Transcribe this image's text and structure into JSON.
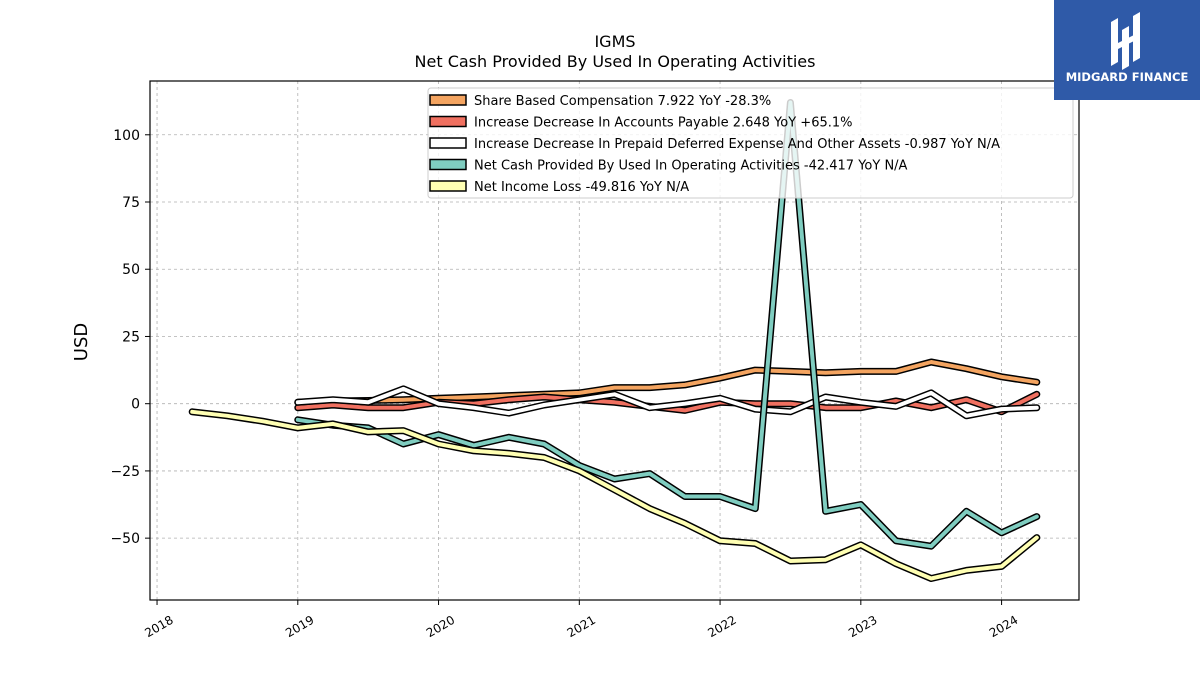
{
  "chart_data": {
    "type": "line",
    "title": "IGMS",
    "subtitle": "Net Cash Provided By Used In Operating Activities",
    "ylabel": "USD",
    "xlabel": "",
    "xlim": [
      2017.95,
      2024.55
    ],
    "ylim": [
      -73,
      120
    ],
    "x_ticks": [
      {
        "value": 2018,
        "label": "2018"
      },
      {
        "value": 2019,
        "label": "2019"
      },
      {
        "value": 2020,
        "label": "2020"
      },
      {
        "value": 2021,
        "label": "2021"
      },
      {
        "value": 2022,
        "label": "2022"
      },
      {
        "value": 2023,
        "label": "2023"
      },
      {
        "value": 2024,
        "label": "2024"
      }
    ],
    "y_ticks": [
      {
        "value": 100,
        "label": "100"
      },
      {
        "value": 75,
        "label": "75"
      },
      {
        "value": 50,
        "label": "50"
      },
      {
        "value": 25,
        "label": "25"
      },
      {
        "value": 0,
        "label": "0"
      },
      {
        "value": -25,
        "label": "−25"
      },
      {
        "value": -50,
        "label": "−50"
      }
    ],
    "grid": true,
    "legend_position": "top",
    "series": [
      {
        "name": "Share Based Compensation",
        "legend_label": "Share Based Compensation  7.922 YoY -28.3%",
        "color": "#f4a460",
        "points": [
          [
            2019.0,
            0.5
          ],
          [
            2019.25,
            1.0
          ],
          [
            2019.5,
            1.2
          ],
          [
            2019.75,
            1.5
          ],
          [
            2020.0,
            2.0
          ],
          [
            2020.25,
            2.5
          ],
          [
            2020.5,
            3.0
          ],
          [
            2020.75,
            3.5
          ],
          [
            2021.0,
            4.0
          ],
          [
            2021.25,
            6.0
          ],
          [
            2021.5,
            6.0
          ],
          [
            2021.75,
            7.0
          ],
          [
            2022.0,
            9.5
          ],
          [
            2022.25,
            12.5
          ],
          [
            2022.5,
            12.0
          ],
          [
            2022.75,
            11.5
          ],
          [
            2023.0,
            12.0
          ],
          [
            2023.25,
            12.0
          ],
          [
            2023.5,
            15.5
          ],
          [
            2023.75,
            13.0
          ],
          [
            2024.0,
            10.0
          ],
          [
            2024.25,
            8.0
          ]
        ]
      },
      {
        "name": "Increase Decrease In Accounts Payable",
        "legend_label": "Increase Decrease In Accounts Payable  2.648 YoY +65.1%",
        "color": "#f07060",
        "points": [
          [
            2019.0,
            -1.5
          ],
          [
            2019.25,
            -0.5
          ],
          [
            2019.5,
            -1.5
          ],
          [
            2019.75,
            -1.5
          ],
          [
            2020.0,
            0.5
          ],
          [
            2020.25,
            0.0
          ],
          [
            2020.5,
            1.5
          ],
          [
            2020.75,
            2.5
          ],
          [
            2021.0,
            1.5
          ],
          [
            2021.25,
            0.5
          ],
          [
            2021.5,
            -1.0
          ],
          [
            2021.75,
            -2.5
          ],
          [
            2022.0,
            0.5
          ],
          [
            2022.25,
            0.0
          ],
          [
            2022.5,
            0.0
          ],
          [
            2022.75,
            -1.5
          ],
          [
            2023.0,
            -1.5
          ],
          [
            2023.25,
            1.0
          ],
          [
            2023.5,
            -1.5
          ],
          [
            2023.75,
            1.5
          ],
          [
            2024.0,
            -3.0
          ],
          [
            2024.25,
            3.5
          ]
        ]
      },
      {
        "name": "Increase Decrease In Prepaid Deferred Expense And Other Assets",
        "legend_label": "Increase Decrease In Prepaid Deferred Expense And Other Assets  -0.987 YoY N/A",
        "color": "#ffffff",
        "points": [
          [
            2019.0,
            0.5
          ],
          [
            2019.25,
            1.5
          ],
          [
            2019.5,
            0.5
          ],
          [
            2019.75,
            5.5
          ],
          [
            2020.0,
            0.0
          ],
          [
            2020.25,
            -1.5
          ],
          [
            2020.5,
            -3.5
          ],
          [
            2020.75,
            -0.5
          ],
          [
            2021.0,
            1.5
          ],
          [
            2021.25,
            3.5
          ],
          [
            2021.5,
            -1.5
          ],
          [
            2021.75,
            0.0
          ],
          [
            2022.0,
            2.0
          ],
          [
            2022.25,
            -2.0
          ],
          [
            2022.5,
            -3.0
          ],
          [
            2022.75,
            2.5
          ],
          [
            2023.0,
            0.5
          ],
          [
            2023.25,
            -1.0
          ],
          [
            2023.5,
            4.0
          ],
          [
            2023.75,
            -4.5
          ],
          [
            2024.0,
            -2.0
          ],
          [
            2024.25,
            -1.5
          ]
        ]
      },
      {
        "name": "Net Cash Provided By Used In Operating Activities",
        "legend_label": "Net Cash Provided By Used In Operating Activities  -42.417 YoY N/A",
        "color": "#7fcdc0",
        "points": [
          [
            2019.0,
            -6.0
          ],
          [
            2019.25,
            -8.0
          ],
          [
            2019.5,
            -9.0
          ],
          [
            2019.75,
            -15.0
          ],
          [
            2020.0,
            -11.5
          ],
          [
            2020.25,
            -15.5
          ],
          [
            2020.5,
            -12.5
          ],
          [
            2020.75,
            -15.0
          ],
          [
            2021.0,
            -23.0
          ],
          [
            2021.25,
            -28.0
          ],
          [
            2021.5,
            -26.0
          ],
          [
            2021.75,
            -34.5
          ],
          [
            2022.0,
            -34.5
          ],
          [
            2022.25,
            -39.0
          ],
          [
            2022.5,
            112.0
          ],
          [
            2022.75,
            -40.0
          ],
          [
            2023.0,
            -37.5
          ],
          [
            2023.25,
            -51.0
          ],
          [
            2023.5,
            -53.0
          ],
          [
            2023.75,
            -40.0
          ],
          [
            2024.0,
            -48.0
          ],
          [
            2024.25,
            -42.0
          ]
        ]
      },
      {
        "name": "Net Income Loss",
        "legend_label": "Net Income Loss  -49.816 YoY N/A",
        "color": "#ffffb3",
        "points": [
          [
            2018.25,
            -3.0
          ],
          [
            2018.5,
            -4.5
          ],
          [
            2018.75,
            -6.5
          ],
          [
            2019.0,
            -9.0
          ],
          [
            2019.25,
            -7.5
          ],
          [
            2019.5,
            -10.5
          ],
          [
            2019.75,
            -10.0
          ],
          [
            2020.0,
            -15.0
          ],
          [
            2020.25,
            -17.5
          ],
          [
            2020.5,
            -18.5
          ],
          [
            2020.75,
            -20.0
          ],
          [
            2021.0,
            -25.0
          ],
          [
            2021.25,
            -32.0
          ],
          [
            2021.5,
            -39.0
          ],
          [
            2021.75,
            -44.5
          ],
          [
            2022.0,
            -51.0
          ],
          [
            2022.25,
            -52.0
          ],
          [
            2022.5,
            -58.5
          ],
          [
            2022.75,
            -58.0
          ],
          [
            2023.0,
            -52.5
          ],
          [
            2023.25,
            -59.5
          ],
          [
            2023.5,
            -65.0
          ],
          [
            2023.75,
            -62.0
          ],
          [
            2024.0,
            -60.5
          ],
          [
            2024.25,
            -49.8
          ]
        ]
      }
    ]
  },
  "logo": {
    "text": "MIDGARD FINANCE",
    "background": "#2f5aa8",
    "color": "#ffffff"
  }
}
